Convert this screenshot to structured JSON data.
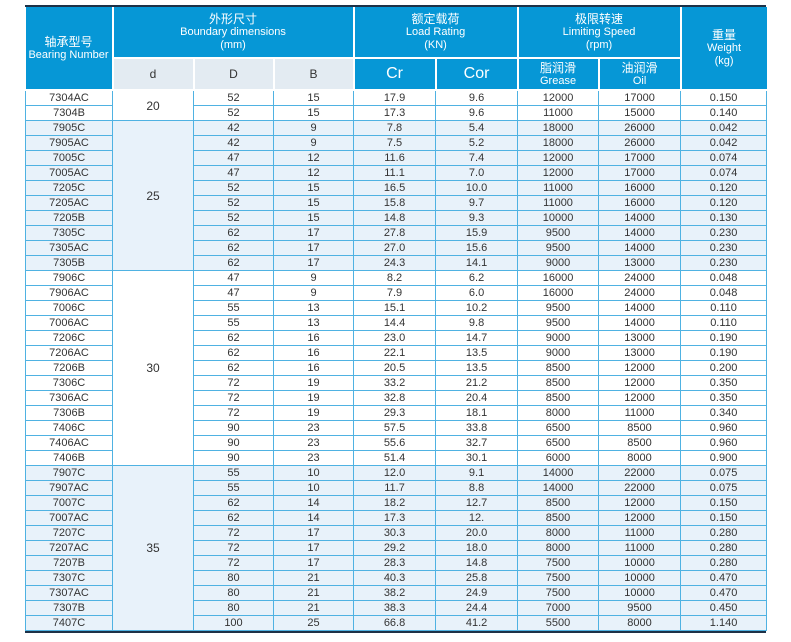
{
  "colors": {
    "header_blue": "#0697d6",
    "grid_cyan": "#4fb2e2",
    "row_tint": "#e8f2fa",
    "subheader_bg": "#e3ebf2",
    "frame_dark": "#1d3147",
    "text": "#333333"
  },
  "table": {
    "header": {
      "bearing_zh": "轴承型号",
      "bearing_en": "Bearing Number",
      "dims_zh": "外形尺寸",
      "dims_en": "Boundary dimensions",
      "dims_unit": "(mm)",
      "load_zh": "额定载荷",
      "load_en": "Load Rating",
      "load_unit": "(KN)",
      "speed_zh": "极限转速",
      "speed_en": "Limiting Speed",
      "speed_unit": "(rpm)",
      "weight_zh": "重量",
      "weight_en": "Weight",
      "weight_unit": "(kg)"
    },
    "subheader": {
      "d": "d",
      "D": "D",
      "B": "B",
      "cr": "Cr",
      "cor": "Cor",
      "grease_zh": "脂润滑",
      "grease_en": "Grease",
      "oil_zh": "油润滑",
      "oil_en": "Oil"
    },
    "columns": [
      "model",
      "D",
      "B",
      "cr",
      "cor",
      "grease",
      "oil",
      "weight"
    ],
    "groups": [
      {
        "d": "20",
        "rows": [
          [
            "7304AC",
            "52",
            "15",
            "17.9",
            "9.6",
            "12000",
            "17000",
            "0.150"
          ],
          [
            "7304B",
            "52",
            "15",
            "17.3",
            "9.6",
            "11000",
            "15000",
            "0.140"
          ]
        ]
      },
      {
        "d": "25",
        "rows": [
          [
            "7905C",
            "42",
            "9",
            "7.8",
            "5.4",
            "18000",
            "26000",
            "0.042"
          ],
          [
            "7905AC",
            "42",
            "9",
            "7.5",
            "5.2",
            "18000",
            "26000",
            "0.042"
          ],
          [
            "7005C",
            "47",
            "12",
            "11.6",
            "7.4",
            "12000",
            "17000",
            "0.074"
          ],
          [
            "7005AC",
            "47",
            "12",
            "11.1",
            "7.0",
            "12000",
            "17000",
            "0.074"
          ],
          [
            "7205C",
            "52",
            "15",
            "16.5",
            "10.0",
            "11000",
            "16000",
            "0.120"
          ],
          [
            "7205AC",
            "52",
            "15",
            "15.8",
            "9.7",
            "11000",
            "16000",
            "0.120"
          ],
          [
            "7205B",
            "52",
            "15",
            "14.8",
            "9.3",
            "10000",
            "14000",
            "0.130"
          ],
          [
            "7305C",
            "62",
            "17",
            "27.8",
            "15.9",
            "9500",
            "14000",
            "0.230"
          ],
          [
            "7305AC",
            "62",
            "17",
            "27.0",
            "15.6",
            "9500",
            "14000",
            "0.230"
          ],
          [
            "7305B",
            "62",
            "17",
            "24.3",
            "14.1",
            "9000",
            "13000",
            "0.230"
          ]
        ]
      },
      {
        "d": "30",
        "rows": [
          [
            "7906C",
            "47",
            "9",
            "8.2",
            "6.2",
            "16000",
            "24000",
            "0.048"
          ],
          [
            "7906AC",
            "47",
            "9",
            "7.9",
            "6.0",
            "16000",
            "24000",
            "0.048"
          ],
          [
            "7006C",
            "55",
            "13",
            "15.1",
            "10.2",
            "9500",
            "14000",
            "0.110"
          ],
          [
            "7006AC",
            "55",
            "13",
            "14.4",
            "9.8",
            "9500",
            "14000",
            "0.110"
          ],
          [
            "7206C",
            "62",
            "16",
            "23.0",
            "14.7",
            "9000",
            "13000",
            "0.190"
          ],
          [
            "7206AC",
            "62",
            "16",
            "22.1",
            "13.5",
            "9000",
            "13000",
            "0.190"
          ],
          [
            "7206B",
            "62",
            "16",
            "20.5",
            "13.5",
            "8500",
            "12000",
            "0.200"
          ],
          [
            "7306C",
            "72",
            "19",
            "33.2",
            "21.2",
            "8500",
            "12000",
            "0.350"
          ],
          [
            "7306AC",
            "72",
            "19",
            "32.8",
            "20.4",
            "8500",
            "12000",
            "0.350"
          ],
          [
            "7306B",
            "72",
            "19",
            "29.3",
            "18.1",
            "8000",
            "11000",
            "0.340"
          ],
          [
            "7406C",
            "90",
            "23",
            "57.5",
            "33.8",
            "6500",
            "8500",
            "0.960"
          ],
          [
            "7406AC",
            "90",
            "23",
            "55.6",
            "32.7",
            "6500",
            "8500",
            "0.960"
          ],
          [
            "7406B",
            "90",
            "23",
            "51.4",
            "30.1",
            "6000",
            "8000",
            "0.900"
          ]
        ]
      },
      {
        "d": "35",
        "rows": [
          [
            "7907C",
            "55",
            "10",
            "12.0",
            "9.1",
            "14000",
            "22000",
            "0.075"
          ],
          [
            "7907AC",
            "55",
            "10",
            "11.7",
            "8.8",
            "14000",
            "22000",
            "0.075"
          ],
          [
            "7007C",
            "62",
            "14",
            "18.2",
            "12.7",
            "8500",
            "12000",
            "0.150"
          ],
          [
            "7007AC",
            "62",
            "14",
            "17.3",
            "12.",
            "8500",
            "12000",
            "0.150"
          ],
          [
            "7207C",
            "72",
            "17",
            "30.3",
            "20.0",
            "8000",
            "11000",
            "0.280"
          ],
          [
            "7207AC",
            "72",
            "17",
            "29.2",
            "18.0",
            "8000",
            "11000",
            "0.280"
          ],
          [
            "7207B",
            "72",
            "17",
            "28.3",
            "14.8",
            "7500",
            "10000",
            "0.280"
          ],
          [
            "7307C",
            "80",
            "21",
            "40.3",
            "25.8",
            "7500",
            "10000",
            "0.470"
          ],
          [
            "7307AC",
            "80",
            "21",
            "38.2",
            "24.9",
            "7500",
            "10000",
            "0.470"
          ],
          [
            "7307B",
            "80",
            "21",
            "38.3",
            "24.4",
            "7000",
            "9500",
            "0.450"
          ],
          [
            "7407C",
            "100",
            "25",
            "66.8",
            "41.2",
            "5500",
            "8000",
            "1.140"
          ]
        ]
      }
    ]
  }
}
